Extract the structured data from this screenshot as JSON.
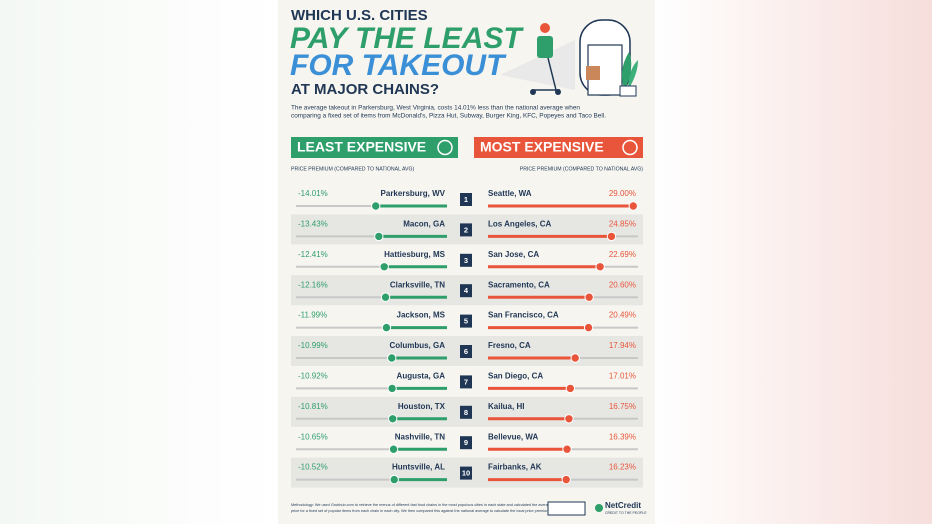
{
  "header": {
    "kicker": "WHICH U.S. CITIES",
    "title_line1": "PAY THE LEAST",
    "title_line2": "FOR TAKEOUT",
    "subtitle": "AT MAJOR CHAINS?",
    "intro_line1": "The average takeout in Parkersburg, West Virginia, costs 14.01% less than the national average when",
    "intro_line2": "comparing a fixed set of items from McDonald's, Pizza Hut, Subway, Burger King, KFC, Popeyes and Taco Bell."
  },
  "ranks": [
    1,
    2,
    3,
    4,
    5,
    6,
    7,
    8,
    9,
    10
  ],
  "least": {
    "title": "LEAST EXPENSIVE",
    "caption": "PRICE PREMIUM (COMPARED TO NATIONAL AVG)",
    "color": "#2e9e6b",
    "rows": [
      {
        "city": "Parkersburg, WV",
        "value": -14.01,
        "label": "-14.01%"
      },
      {
        "city": "Macon, GA",
        "value": -13.43,
        "label": "-13.43%"
      },
      {
        "city": "Hattiesburg, MS",
        "value": -12.41,
        "label": "-12.41%"
      },
      {
        "city": "Clarksville, TN",
        "value": -12.16,
        "label": "-12.16%"
      },
      {
        "city": "Jackson, MS",
        "value": -11.99,
        "label": "-11.99%"
      },
      {
        "city": "Columbus, GA",
        "value": -10.99,
        "label": "-10.99%"
      },
      {
        "city": "Augusta, GA",
        "value": -10.92,
        "label": "-10.92%"
      },
      {
        "city": "Houston, TX",
        "value": -10.81,
        "label": "-10.81%"
      },
      {
        "city": "Nashville, TN",
        "value": -10.65,
        "label": "-10.65%"
      },
      {
        "city": "Huntsville, AL",
        "value": -10.52,
        "label": "-10.52%"
      }
    ]
  },
  "most": {
    "title": "MOST EXPENSIVE",
    "caption": "PRICE PREMIUM (COMPARED TO NATIONAL AVG)",
    "color": "#e8553a",
    "rows": [
      {
        "city": "Seattle, WA",
        "value": 29.0,
        "label": "29.00%"
      },
      {
        "city": "Los Angeles, CA",
        "value": 24.85,
        "label": "24.85%"
      },
      {
        "city": "San Jose, CA",
        "value": 22.69,
        "label": "22.69%"
      },
      {
        "city": "Sacramento, CA",
        "value": 20.6,
        "label": "20.60%"
      },
      {
        "city": "San Francisco, CA",
        "value": 20.49,
        "label": "20.49%"
      },
      {
        "city": "Fresno, CA",
        "value": 17.94,
        "label": "17.94%"
      },
      {
        "city": "San Diego, CA",
        "value": 17.01,
        "label": "17.01%"
      },
      {
        "city": "Kailua, HI",
        "value": 16.75,
        "label": "16.75%"
      },
      {
        "city": "Bellevue, WA",
        "value": 16.39,
        "label": "16.39%"
      },
      {
        "city": "Fairbanks, AK",
        "value": 16.23,
        "label": "16.23%"
      }
    ]
  },
  "footer": {
    "methodology_line1": "Methodology: We used Grubhub.com to retrieve the menus of different fast food chains in the most populous cities in each state and calculated the average",
    "methodology_line2": "price for a fixed set of popular items from each chain in each city. We then compared this against the national average to calculate the local price premium.",
    "brand": "NetCredit",
    "tagline": "CREDIT TO THE PEOPLE"
  }
}
